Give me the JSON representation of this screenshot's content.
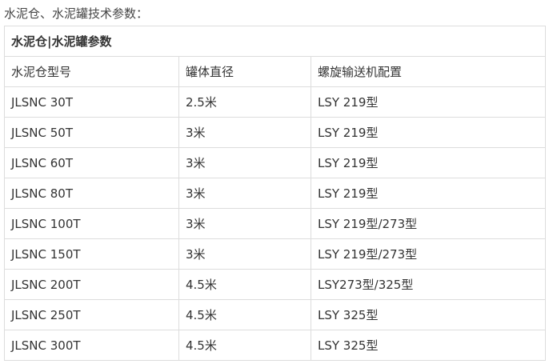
{
  "intro": "水泥仓、水泥罐技术参数：",
  "table": {
    "title": "水泥仓|水泥罐参数",
    "headers": [
      "水泥仓型号",
      "罐体直径",
      "螺旋输送机配置"
    ],
    "rows": [
      [
        "JLSNC 30T",
        "2.5米",
        "LSY 219型"
      ],
      [
        "JLSNC 50T",
        "3米",
        "LSY 219型"
      ],
      [
        "JLSNC 60T",
        "3米",
        "LSY 219型"
      ],
      [
        "JLSNC 80T",
        "3米",
        "LSY 219型"
      ],
      [
        "JLSNC 100T",
        "3米",
        "LSY 219型/273型"
      ],
      [
        "JLSNC 150T",
        "3米",
        "LSY 219型/273型"
      ],
      [
        "JLSNC 200T",
        "4.5米",
        "LSY273型/325型"
      ],
      [
        "JLSNC 250T",
        "4.5米",
        "LSY 325型"
      ],
      [
        "JLSNC 300T",
        "4.5米",
        "LSY 325型"
      ]
    ]
  }
}
